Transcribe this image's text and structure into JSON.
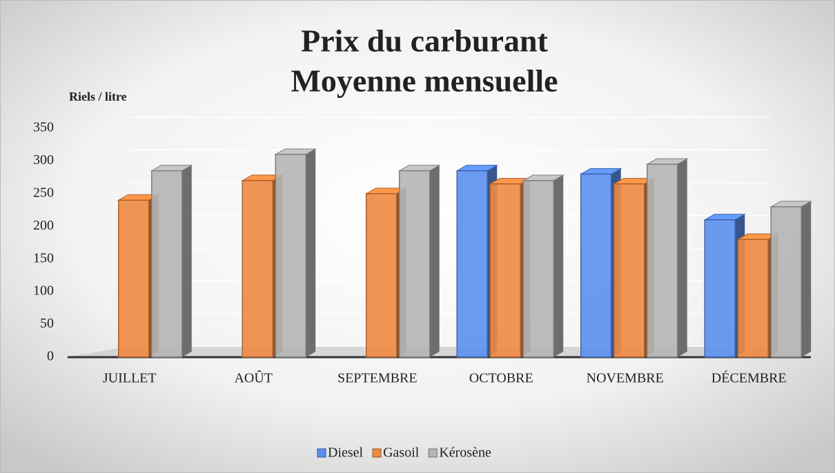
{
  "chart_data": {
    "type": "bar3d",
    "title": "Prix du carburant",
    "subtitle": "Moyenne mensuelle",
    "y_label": "Riels / litre",
    "categories": [
      "JUILLET",
      "AOÛT",
      "SEPTEMBRE",
      "OCTOBRE",
      "NOVEMBRE",
      "DÉCEMBRE"
    ],
    "series": [
      {
        "name": "Diesel",
        "color": "#5b8ff0",
        "values": [
          null,
          null,
          null,
          285,
          280,
          210
        ]
      },
      {
        "name": "Gasoil",
        "color": "#f08a42",
        "values": [
          240,
          270,
          250,
          265,
          265,
          180
        ]
      },
      {
        "name": "Kérosène",
        "color": "#b5b5b5",
        "values": [
          285,
          310,
          285,
          270,
          295,
          230
        ]
      }
    ],
    "ylim": [
      0,
      350
    ],
    "yticks": [
      0,
      50,
      100,
      150,
      200,
      250,
      300,
      350
    ],
    "grid": true,
    "legend": "bottom"
  }
}
